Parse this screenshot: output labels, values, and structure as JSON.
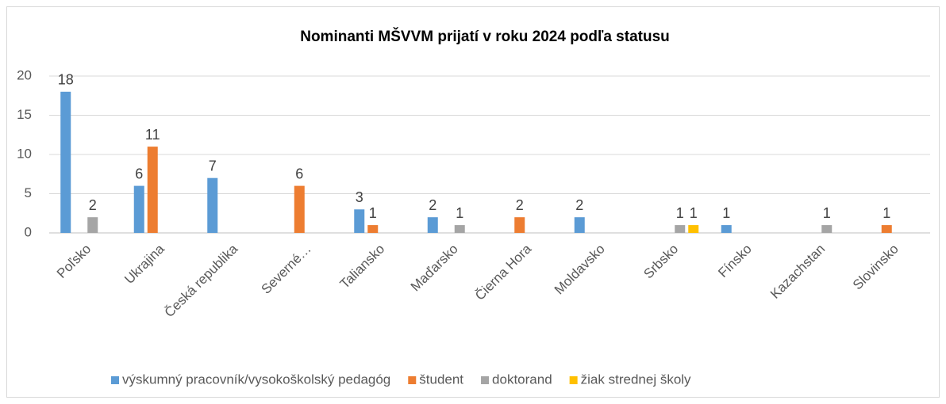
{
  "chart_data": {
    "type": "bar",
    "title": "Nominanti MŠVVM prijatí v roku 2024 podľa statusu",
    "categories": [
      "Poľsko",
      "Ukrajina",
      "Česká republika",
      "Severné…",
      "Taliansko",
      "Maďarsko",
      "Čierna Hora",
      "Moldavsko",
      "Srbsko",
      "Fínsko",
      "Kazachstan",
      "Slovinsko"
    ],
    "series": [
      {
        "name": "výskumný pracovník/vysokoškolský pedagóg",
        "color": "#5b9bd5",
        "values": [
          18,
          6,
          7,
          null,
          3,
          2,
          null,
          2,
          null,
          1,
          null,
          null
        ]
      },
      {
        "name": "študent",
        "color": "#ed7d31",
        "values": [
          null,
          11,
          null,
          6,
          1,
          null,
          2,
          null,
          null,
          null,
          null,
          1
        ]
      },
      {
        "name": "doktorand",
        "color": "#a5a5a5",
        "values": [
          2,
          null,
          null,
          null,
          null,
          1,
          null,
          null,
          1,
          null,
          1,
          null
        ]
      },
      {
        "name": "žiak strednej školy",
        "color": "#ffc000",
        "values": [
          null,
          null,
          null,
          null,
          null,
          null,
          null,
          null,
          1,
          null,
          null,
          null
        ]
      }
    ],
    "ylim": [
      0,
      20
    ],
    "yticks": [
      0,
      5,
      10,
      15,
      20
    ],
    "grid": true,
    "legend": "bottom"
  }
}
